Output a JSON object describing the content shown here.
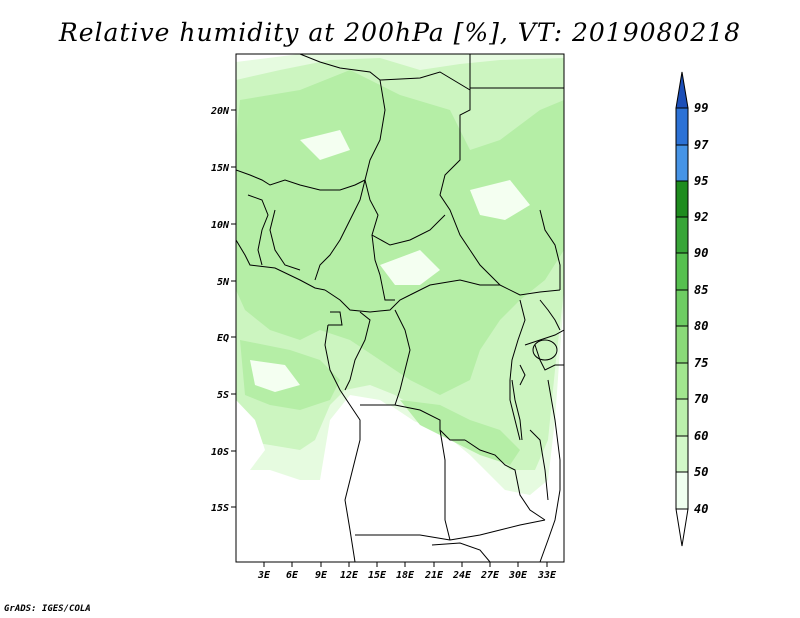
{
  "title": "Relative humidity at 200hPa [%], VT: 2019080218",
  "credit": "GrADS: IGES/COLA",
  "map": {
    "lat_labels": [
      "20N",
      "15N",
      "10N",
      "5N",
      "EQ",
      "5S",
      "10S",
      "15S"
    ],
    "lon_labels": [
      "3E",
      "6E",
      "9E",
      "12E",
      "15E",
      "18E",
      "21E",
      "24E",
      "27E",
      "30E",
      "33E"
    ]
  },
  "colorbar": {
    "levels": [
      "40",
      "50",
      "60",
      "70",
      "75",
      "80",
      "85",
      "90",
      "92",
      "95",
      "97",
      "99"
    ],
    "colors": [
      "#f0fff0",
      "#d2f8c8",
      "#bbf0ac",
      "#a2e68f",
      "#8ad978",
      "#6ecd63",
      "#56c04f",
      "#37a537",
      "#1e8c1e",
      "#4694e6",
      "#2c72d6",
      "#1c4fb8"
    ]
  }
}
